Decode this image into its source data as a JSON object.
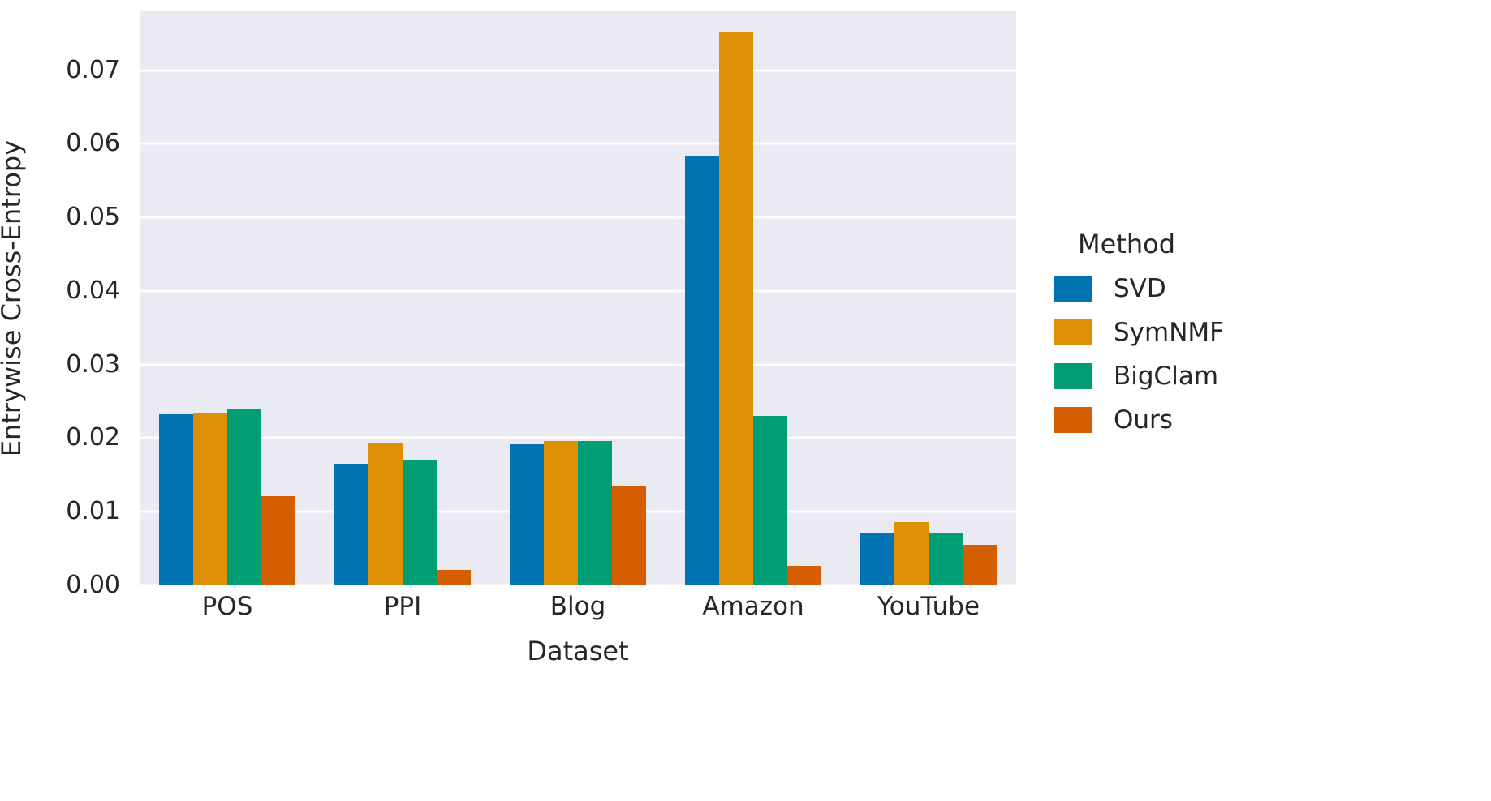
{
  "chart_data": {
    "type": "bar",
    "title": "",
    "xlabel": "Dataset",
    "ylabel": "Entrywise Cross-Entropy",
    "categories": [
      "POS",
      "PPI",
      "Blog",
      "Amazon",
      "YouTube"
    ],
    "series": [
      {
        "name": "SVD",
        "color": "#0173b2",
        "values": [
          0.0232,
          0.0165,
          0.0192,
          0.0583,
          0.0072
        ]
      },
      {
        "name": "SymNMF",
        "color": "#de8f05",
        "values": [
          0.0234,
          0.0194,
          0.0196,
          0.0753,
          0.0086
        ]
      },
      {
        "name": "BigClam",
        "color": "#029e73",
        "values": [
          0.024,
          0.017,
          0.0196,
          0.023,
          0.007
        ]
      },
      {
        "name": "Ours",
        "color": "#d55e00",
        "values": [
          0.0121,
          0.0021,
          0.0135,
          0.0026,
          0.0055
        ]
      }
    ],
    "ylim": [
      0,
      0.078
    ],
    "yticks": [
      0.0,
      0.01,
      0.02,
      0.03,
      0.04,
      0.05,
      0.06,
      0.07
    ],
    "ytick_labels": [
      "0.00",
      "0.01",
      "0.02",
      "0.03",
      "0.04",
      "0.05",
      "0.06",
      "0.07"
    ],
    "grid": true,
    "plot_background": "#eaeaf2",
    "gridline_color": "#ffffff",
    "legend": {
      "title": "Method",
      "position": "right",
      "entries": [
        "SVD",
        "SymNMF",
        "BigClam",
        "Ours"
      ]
    }
  }
}
